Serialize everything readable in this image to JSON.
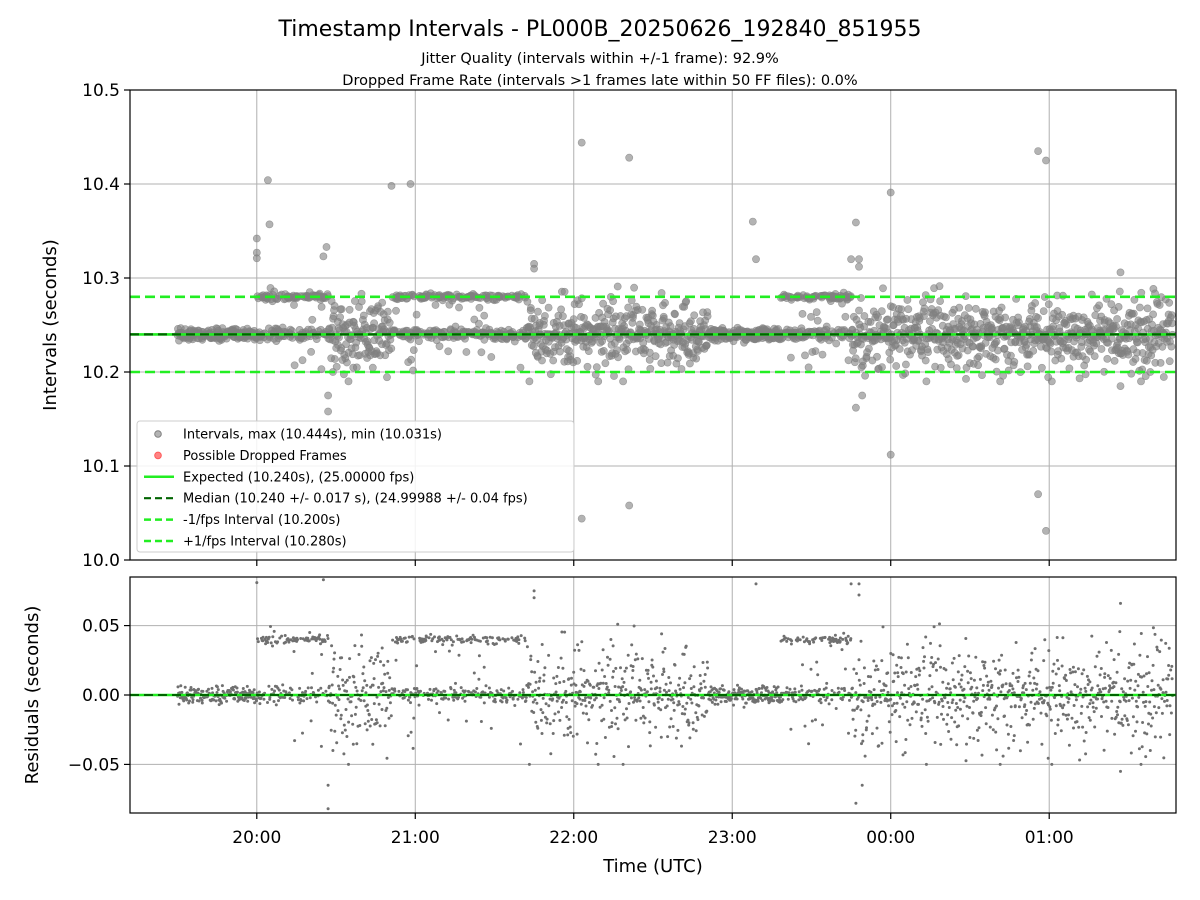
{
  "title": "Timestamp Intervals - PL000B_20250626_192840_851955",
  "subtitle_line1": "Jitter Quality (intervals within +/-1 frame): 92.9%",
  "subtitle_line2": "Dropped Frame Rate (intervals >1 frames late within 50 FF files): 0.0%",
  "colors": {
    "points": "#808080",
    "residual_points": "#707070",
    "dropped": "#ff5a5a",
    "expected": "#22ee22",
    "median": "#006400",
    "fps_interval": "#22ee22",
    "grid": "#b0b0b0"
  },
  "chart_data": [
    {
      "type": "scatter",
      "ylabel": "Intervals (seconds)",
      "ylim": [
        10.0,
        10.5
      ],
      "y_ticks": [
        "10.0",
        "10.1",
        "10.2",
        "10.3",
        "10.4",
        "10.5"
      ],
      "xlim_hours": [
        19.2,
        25.8
      ],
      "legend_position": "lower-left",
      "legend": [
        {
          "label": "Intervals, max (10.444s), min (10.031s)",
          "kind": "marker-gray"
        },
        {
          "label": "Possible Dropped Frames",
          "kind": "marker-red"
        },
        {
          "label": "Expected (10.240s), (25.00000 fps)",
          "kind": "line-solid"
        },
        {
          "label": "Median (10.240 +/- 0.017 s), (24.99988 +/- 0.04 fps)",
          "kind": "line-dark-dashed"
        },
        {
          "label": "-1/fps Interval (10.200s)",
          "kind": "line-dashed"
        },
        {
          "label": "+1/fps Interval (10.280s)",
          "kind": "line-dashed"
        }
      ],
      "reference_lines": {
        "expected": 10.24,
        "median": 10.24,
        "minus_fps": 10.2,
        "plus_fps": 10.28
      },
      "series": [
        {
          "name": "Intervals, max (10.444s), min (10.031s)",
          "segments": [
            {
              "t0": 19.5,
              "t1": 20.0,
              "mode": "tight"
            },
            {
              "t0": 20.0,
              "t1": 20.45,
              "mode": "bimodal"
            },
            {
              "t0": 20.45,
              "t1": 20.85,
              "mode": "scatter"
            },
            {
              "t0": 20.85,
              "t1": 21.7,
              "mode": "bimodal"
            },
            {
              "t0": 21.7,
              "t1": 22.85,
              "mode": "scatter"
            },
            {
              "t0": 22.85,
              "t1": 23.3,
              "mode": "tight"
            },
            {
              "t0": 23.3,
              "t1": 23.75,
              "mode": "bimodal"
            },
            {
              "t0": 23.75,
              "t1": 25.78,
              "mode": "scatter"
            }
          ]
        },
        {
          "name": "outliers",
          "points": [
            [
              20.0,
              10.342
            ],
            [
              20.0,
              10.327
            ],
            [
              20.0,
              10.321
            ],
            [
              20.07,
              10.404
            ],
            [
              20.08,
              10.357
            ],
            [
              20.42,
              10.323
            ],
            [
              20.44,
              10.333
            ],
            [
              20.45,
              10.175
            ],
            [
              20.45,
              10.158
            ],
            [
              20.48,
              10.2
            ],
            [
              20.85,
              10.398
            ],
            [
              20.97,
              10.4
            ],
            [
              21.75,
              10.31
            ],
            [
              21.75,
              10.315
            ],
            [
              22.05,
              10.444
            ],
            [
              22.05,
              10.044
            ],
            [
              22.35,
              10.428
            ],
            [
              22.35,
              10.058
            ],
            [
              23.13,
              10.36
            ],
            [
              23.15,
              10.32
            ],
            [
              23.75,
              10.32
            ],
            [
              23.78,
              10.359
            ],
            [
              23.8,
              10.32
            ],
            [
              23.8,
              10.312
            ],
            [
              23.78,
              10.162
            ],
            [
              23.82,
              10.175
            ],
            [
              24.0,
              10.391
            ],
            [
              24.0,
              10.112
            ],
            [
              24.93,
              10.435
            ],
            [
              24.93,
              10.07
            ],
            [
              24.98,
              10.425
            ],
            [
              24.98,
              10.031
            ],
            [
              25.45,
              10.306
            ],
            [
              25.45,
              10.185
            ]
          ]
        },
        {
          "name": "Possible Dropped Frames",
          "points": []
        }
      ]
    },
    {
      "type": "scatter",
      "ylabel": "Residuals (seconds)",
      "xlabel": "Time (UTC)",
      "ylim": [
        -0.085,
        0.085
      ],
      "y_ticks": [
        {
          "value": 0.05,
          "label": "0.05"
        },
        {
          "value": 0.0,
          "label": "0.00"
        },
        {
          "value": -0.05,
          "label": "−0.05"
        }
      ],
      "x_ticks": [
        {
          "value": 20,
          "label": "20:00"
        },
        {
          "value": 21,
          "label": "21:00"
        },
        {
          "value": 22,
          "label": "22:00"
        },
        {
          "value": 23,
          "label": "23:00"
        },
        {
          "value": 24,
          "label": "00:00"
        },
        {
          "value": 25,
          "label": "01:00"
        }
      ],
      "reference_lines": {
        "zero": 0.0
      }
    }
  ]
}
